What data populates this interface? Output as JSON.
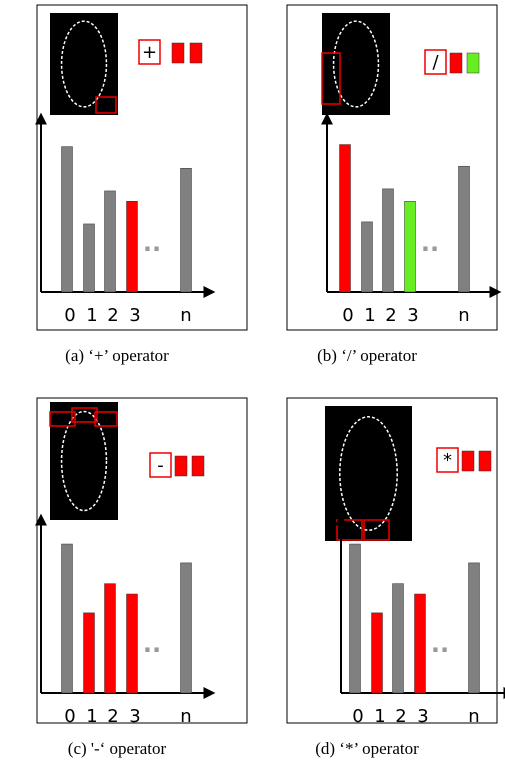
{
  "chart_data": [
    {
      "type": "bar",
      "operator": "+",
      "caption": "(a) ‘+’ operator",
      "categories": [
        "0",
        "1",
        "2",
        "3",
        "..",
        "n"
      ],
      "values": [
        141,
        66,
        98,
        88,
        null,
        120
      ],
      "colors": [
        "#808080",
        "#808080",
        "#808080",
        "#ff0000",
        "#999999",
        "#808080"
      ],
      "indicator_colors": [
        "#ff0000",
        "#ff0000"
      ],
      "ylim": [
        0,
        160
      ]
    },
    {
      "type": "bar",
      "operator": "/",
      "caption": "(b) ‘/’ operator",
      "categories": [
        "0",
        "1",
        "2",
        "3",
        "..",
        "n"
      ],
      "values": [
        143,
        68,
        100,
        88,
        null,
        122
      ],
      "colors": [
        "#ff0000",
        "#808080",
        "#808080",
        "#66ee22",
        "#999999",
        "#808080"
      ],
      "indicator_colors": [
        "#ff0000",
        "#66ee22"
      ],
      "ylim": [
        0,
        160
      ]
    },
    {
      "type": "bar",
      "operator": "-",
      "caption": "(c) '-‘ operator",
      "categories": [
        "0",
        "1",
        "2",
        "3",
        "..",
        "n"
      ],
      "values": [
        158,
        85,
        116,
        105,
        null,
        138
      ],
      "colors": [
        "#808080",
        "#ff0000",
        "#ff0000",
        "#ff0000",
        "#999999",
        "#808080"
      ],
      "indicator_colors": [
        "#ff0000",
        "#ff0000"
      ],
      "ylim": [
        0,
        175
      ]
    },
    {
      "type": "bar",
      "operator": "*",
      "caption": "(d) ‘*’ operator",
      "categories": [
        "0",
        "1",
        "2",
        "3",
        "..",
        "n"
      ],
      "values": [
        158,
        85,
        116,
        105,
        null,
        138
      ],
      "colors": [
        "#808080",
        "#ff0000",
        "#808080",
        "#ff0000",
        "#999999",
        "#808080"
      ],
      "indicator_colors": [
        "#ff0000",
        "#ff0000"
      ],
      "ylim": [
        0,
        175
      ]
    }
  ]
}
